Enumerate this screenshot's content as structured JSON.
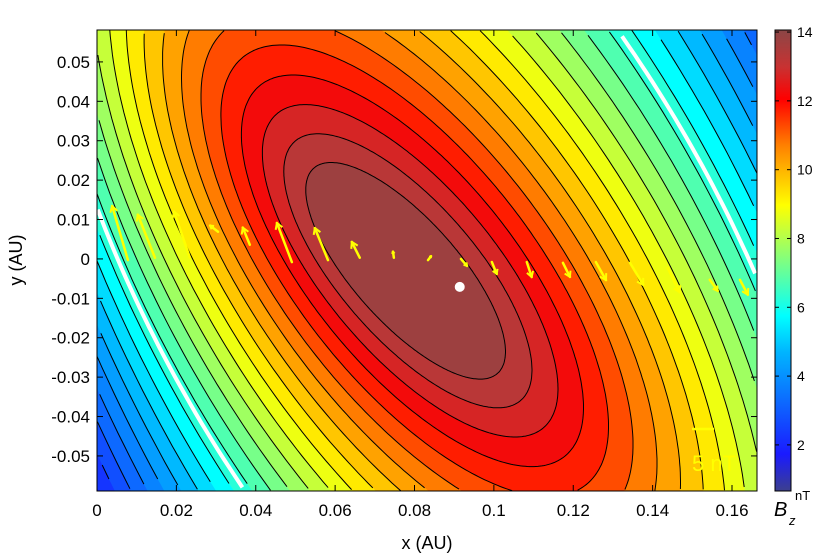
{
  "chart_data": {
    "type": "heatmap",
    "subtype": "filled-contour-with-vectors",
    "xlabel": "x (AU)",
    "ylabel": "y (AU)",
    "xlim": [
      0,
      0.1663
    ],
    "ylim": [
      -0.0589,
      0.0581
    ],
    "xticks": [
      "0",
      "0.02",
      "0.04",
      "0.06",
      "0.08",
      "0.1",
      "0.12",
      "0.14",
      "0.16"
    ],
    "xtick_values": [
      0,
      0.02,
      0.04,
      0.06,
      0.08,
      0.1,
      0.12,
      0.14,
      0.16
    ],
    "yticks": [
      "-0.05",
      "-0.04",
      "-0.03",
      "-0.02",
      "-0.01",
      "0",
      "0.01",
      "0.02",
      "0.03",
      "0.04",
      "0.05"
    ],
    "ytick_values": [
      -0.05,
      -0.04,
      -0.03,
      -0.02,
      -0.01,
      0,
      0.01,
      0.02,
      0.03,
      0.04,
      0.05
    ],
    "colorbar": {
      "label_main": "B",
      "label_sub": "z",
      "unit": "nT",
      "range": [
        0.66,
        14.06
      ],
      "ticks": [
        "2",
        "4",
        "6",
        "8",
        "10",
        "12",
        "14"
      ],
      "tick_values": [
        2,
        4,
        6,
        8,
        10,
        12,
        14
      ]
    },
    "field": {
      "max_value": 14.0,
      "center": [
        0.082,
        -0.002
      ],
      "contour_step": 0.5,
      "highlight_contour": 6.3
    },
    "marker": {
      "x": 0.0914,
      "y": -0.0071,
      "color": "#ffffff"
    },
    "vector_scale": {
      "label": "5 nT",
      "value": 5
    },
    "vectors": [
      {
        "x": 0.0078,
        "y": -0.0003,
        "bx": -3.6,
        "by": 12.3
      },
      {
        "x": 0.0146,
        "y": 0.0003,
        "bx": -3.9,
        "by": 9.8
      },
      {
        "x": 0.0234,
        "y": 0.0003,
        "bx": -3.6,
        "by": 10.5
      },
      {
        "x": 0.0305,
        "y": 0.0069,
        "bx": -1.8,
        "by": 1.4
      },
      {
        "x": 0.0385,
        "y": 0.0036,
        "bx": -1.6,
        "by": 3.9
      },
      {
        "x": 0.0491,
        "y": -0.0008,
        "bx": -3.4,
        "by": 8.9
      },
      {
        "x": 0.0582,
        "y": -0.0003,
        "bx": -3.0,
        "by": 7.3
      },
      {
        "x": 0.0662,
        "y": 0.0003,
        "bx": -1.8,
        "by": 3.6
      },
      {
        "x": 0.0748,
        "y": 0.0003,
        "bx": -0.2,
        "by": 1.4
      },
      {
        "x": 0.0834,
        "y": -0.0003,
        "bx": 0.7,
        "by": 0.9
      },
      {
        "x": 0.0917,
        "y": 0.0,
        "bx": 1.4,
        "by": -1.6
      },
      {
        "x": 0.0995,
        "y": -0.0008,
        "bx": 1.1,
        "by": -2.7
      },
      {
        "x": 0.1083,
        "y": -0.0008,
        "bx": 1.1,
        "by": -3.4
      },
      {
        "x": 0.1174,
        "y": -0.001,
        "bx": 1.6,
        "by": -3.2
      },
      {
        "x": 0.1257,
        "y": -0.0008,
        "bx": 2.3,
        "by": -4.1
      },
      {
        "x": 0.1343,
        "y": -0.001,
        "bx": 3.0,
        "by": -5.0
      },
      {
        "x": 0.1438,
        "y": -0.0023,
        "bx": 2.7,
        "by": -5.5
      },
      {
        "x": 0.1544,
        "y": -0.0053,
        "bx": 1.8,
        "by": -2.5
      },
      {
        "x": 0.162,
        "y": -0.0053,
        "bx": 1.8,
        "by": -3.4
      }
    ],
    "colors": {
      "vector": "#ffff00",
      "highlight": "#ffffff",
      "contour": "#000000"
    }
  }
}
